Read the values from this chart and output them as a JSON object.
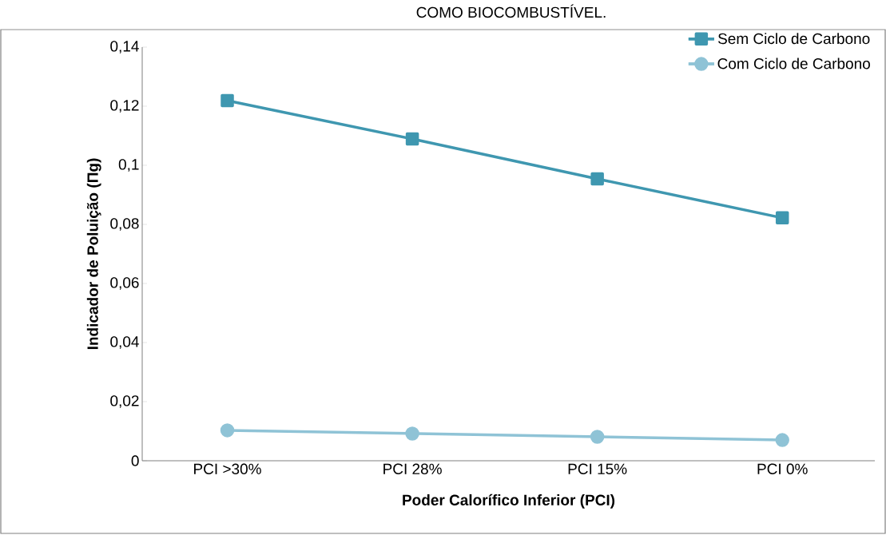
{
  "chart_data": {
    "type": "line",
    "title": "COMO BIOCOMBUSTÍVEL.",
    "xlabel": "Poder Calorífico Inferior (PCI)",
    "ylabel": "Indicador de Poluição  (Πg)",
    "categories": [
      "PCI >30%",
      "PCI 28%",
      "PCI 15%",
      "PCI 0%"
    ],
    "series": [
      {
        "name": "Sem Ciclo de Carbono",
        "color": "#3f97b0",
        "marker": "square",
        "values": [
          0.1219,
          0.1089,
          0.0954,
          0.0822
        ]
      },
      {
        "name": "Com Ciclo de Carbono",
        "color": "#8fc3d6",
        "marker": "circle",
        "values": [
          0.0103,
          0.0092,
          0.0081,
          0.007
        ]
      }
    ],
    "ylim": [
      0,
      0.14
    ],
    "yticks": [
      {
        "value": 0,
        "label": "0"
      },
      {
        "value": 0.02,
        "label": "0,02"
      },
      {
        "value": 0.04,
        "label": "0,04"
      },
      {
        "value": 0.06,
        "label": "0,06"
      },
      {
        "value": 0.08,
        "label": "0,08"
      },
      {
        "value": 0.1,
        "label": "0,1"
      },
      {
        "value": 0.12,
        "label": "0,12"
      },
      {
        "value": 0.14,
        "label": "0,14"
      }
    ],
    "grid": false,
    "legend": "top right"
  }
}
